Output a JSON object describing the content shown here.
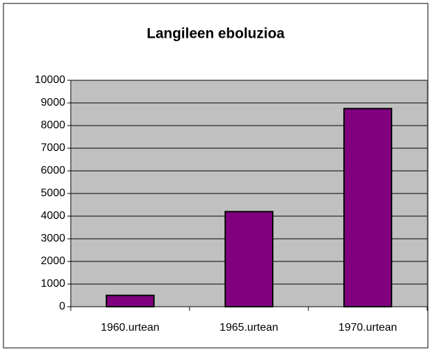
{
  "chart_data": {
    "type": "bar",
    "title": "Langileen eboluzioa",
    "categories": [
      "1960.urtean",
      "1965.urtean",
      "1970.urtean"
    ],
    "values": [
      500,
      4200,
      8750
    ],
    "color": "#800080",
    "ylim": [
      0,
      10000
    ],
    "yticks": [
      0,
      1000,
      2000,
      3000,
      4000,
      5000,
      6000,
      7000,
      8000,
      9000,
      10000
    ],
    "grid": true
  }
}
